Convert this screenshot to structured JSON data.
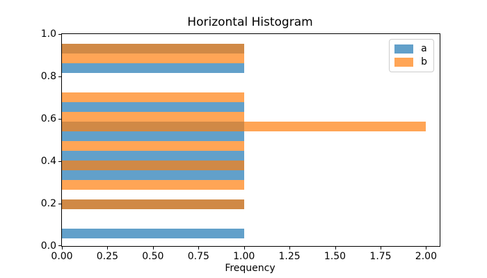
{
  "chart_data": {
    "type": "bar",
    "subtype": "horizontal-histogram",
    "title": "Horizontal Histogram",
    "xlabel": "Frequency",
    "ylabel": "",
    "xlim": [
      0,
      2.075
    ],
    "ylim": [
      0,
      1.0
    ],
    "grid": false,
    "bar_alpha": 0.7,
    "legend": {
      "position": "upper right",
      "entries": [
        "a",
        "b"
      ]
    },
    "x_ticks": {
      "values": [
        0,
        0.25,
        0.5,
        0.75,
        1.0,
        1.25,
        1.5,
        1.75,
        2.0
      ],
      "labels": [
        "0.00",
        "0.25",
        "0.50",
        "0.75",
        "1.00",
        "1.25",
        "1.50",
        "1.75",
        "2.00"
      ]
    },
    "y_ticks": {
      "values": [
        0,
        0.2,
        0.4,
        0.6,
        0.8,
        1.0
      ],
      "labels": [
        "0.0",
        "0.2",
        "0.4",
        "0.6",
        "0.8",
        "1.0"
      ]
    },
    "bin_edges": [
      0.035,
      0.081,
      0.127,
      0.173,
      0.219,
      0.265,
      0.311,
      0.357,
      0.403,
      0.449,
      0.495,
      0.541,
      0.587,
      0.633,
      0.679,
      0.725,
      0.771,
      0.817,
      0.863,
      0.909,
      0.955
    ],
    "series": [
      {
        "name": "a",
        "color": "#1f77b4",
        "counts": [
          1,
          0,
          0,
          1,
          0,
          0,
          1,
          1,
          1,
          0,
          1,
          1,
          0,
          1,
          0,
          0,
          0,
          1,
          0,
          1
        ]
      },
      {
        "name": "b",
        "color": "#ff7f0e",
        "counts": [
          0,
          0,
          0,
          1,
          0,
          1,
          0,
          1,
          0,
          1,
          0,
          2,
          1,
          0,
          1,
          0,
          0,
          0,
          1,
          1
        ]
      }
    ]
  },
  "colors": {
    "spine": "#000000",
    "text": "#000000",
    "legend_border": "#cccccc",
    "background": "#ffffff"
  }
}
